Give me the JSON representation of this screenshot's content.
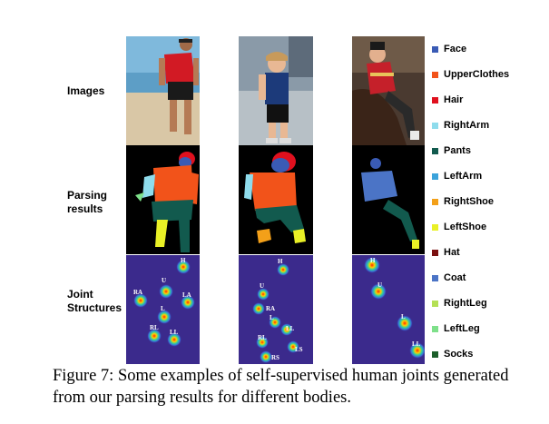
{
  "row_labels": {
    "images": "Images",
    "parsing_1": "Parsing",
    "parsing_2": "results",
    "joint_1": "Joint",
    "joint_2": "Structures"
  },
  "legend": [
    {
      "label": "Face",
      "color": "#3a5bb5"
    },
    {
      "label": "UpperClothes",
      "color": "#f2531a"
    },
    {
      "label": "Hair",
      "color": "#e0101e"
    },
    {
      "label": "RightArm",
      "color": "#8fdcec"
    },
    {
      "label": "Pants",
      "color": "#125a4e"
    },
    {
      "label": "LeftArm",
      "color": "#3ba3db"
    },
    {
      "label": "RightShoe",
      "color": "#f3a019"
    },
    {
      "label": "LeftShoe",
      "color": "#e9f026"
    },
    {
      "label": "Hat",
      "color": "#7a1010"
    },
    {
      "label": "Coat",
      "color": "#4b74c6"
    },
    {
      "label": "RightLeg",
      "color": "#b4e055"
    },
    {
      "label": "LeftLeg",
      "color": "#7ee08a"
    },
    {
      "label": "Socks",
      "color": "#1b5e2a"
    }
  ],
  "joints": {
    "panel1": [
      "H",
      "U",
      "RA",
      "LA",
      "L",
      "RL",
      "LL"
    ],
    "panel2": [
      "H",
      "U",
      "RA",
      "L",
      "LL",
      "RL",
      "LS",
      "RS"
    ],
    "panel3": [
      "H",
      "U",
      "L",
      "LL"
    ]
  },
  "caption": "Figure 7:  Some examples of self-supervised human joints generated from our parsing results for different bodies.",
  "colors": {
    "joint_bg": "#3b2a8c",
    "parsing_bg": "#000000"
  }
}
